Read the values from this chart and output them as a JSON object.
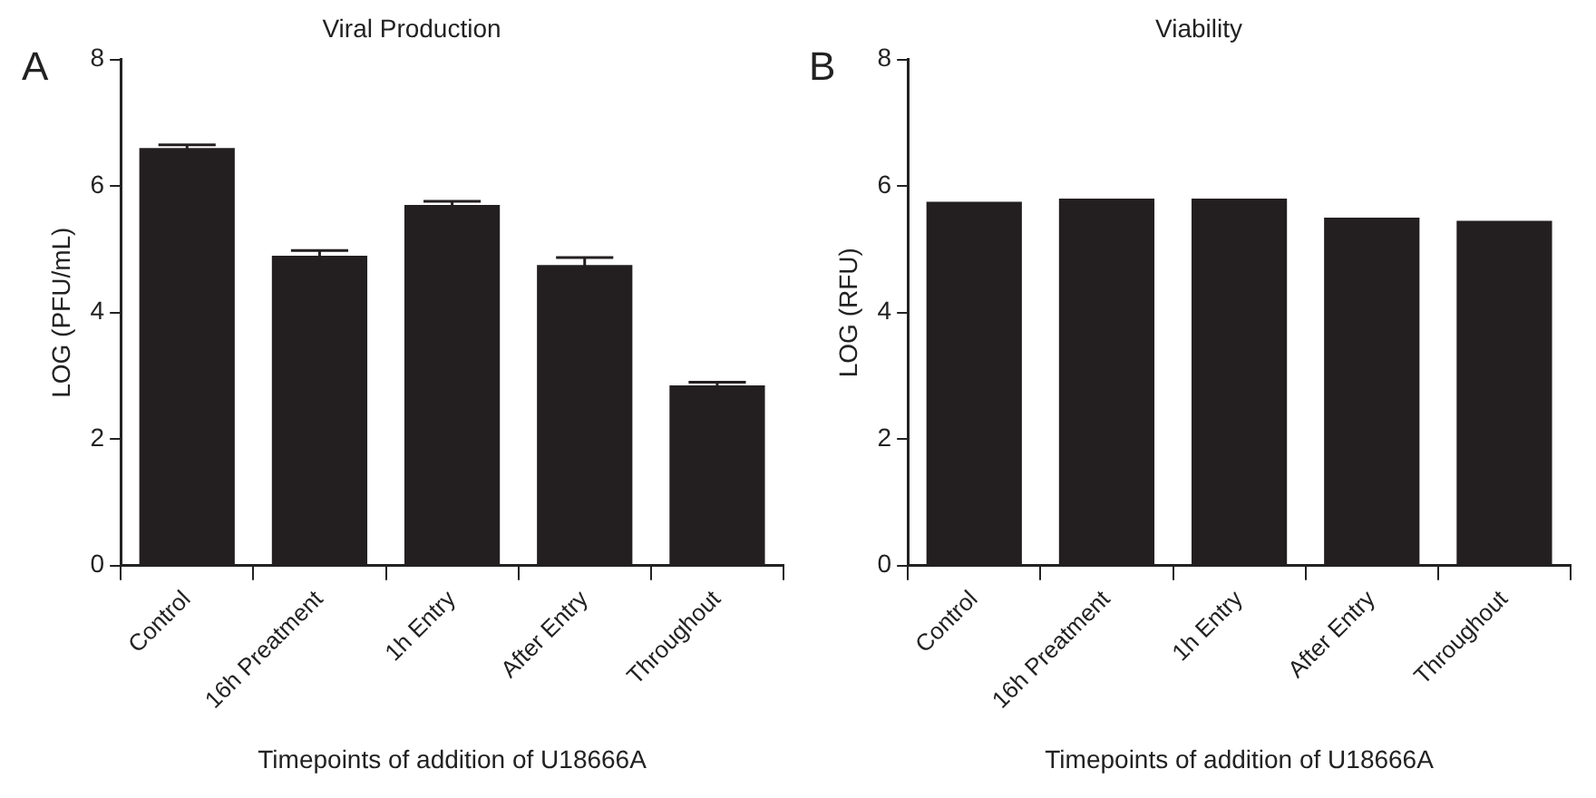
{
  "chart_data": [
    {
      "type": "bar",
      "title": "Viral Production",
      "xlabel": "Timepoints of addition of U18666A",
      "ylabel": "LOG (PFU/mL)",
      "annotations": [
        "A"
      ],
      "categories": [
        "Control",
        "16h Preatment",
        "1h Entry",
        "After Entry",
        "Throughout"
      ],
      "values": [
        6.6,
        4.9,
        5.7,
        4.75,
        2.85
      ],
      "errors": [
        0.05,
        0.08,
        0.06,
        0.12,
        0.05
      ],
      "color": "#231f20",
      "ylim": [
        0,
        8
      ],
      "yticks": [
        0,
        2,
        4,
        6,
        8
      ],
      "grid": false,
      "legend": false
    },
    {
      "type": "bar",
      "title": "Viability",
      "xlabel": "Timepoints of addition of U18666A",
      "ylabel": "LOG (RFU)",
      "annotations": [
        "B"
      ],
      "categories": [
        "Control",
        "16h Preatment",
        "1h Entry",
        "After Entry",
        "Throughout"
      ],
      "values": [
        5.75,
        5.8,
        5.8,
        5.5,
        5.45
      ],
      "color": "#231f20",
      "ylim": [
        0,
        8
      ],
      "yticks": [
        0,
        2,
        4,
        6,
        8
      ],
      "grid": false,
      "legend": false
    }
  ]
}
